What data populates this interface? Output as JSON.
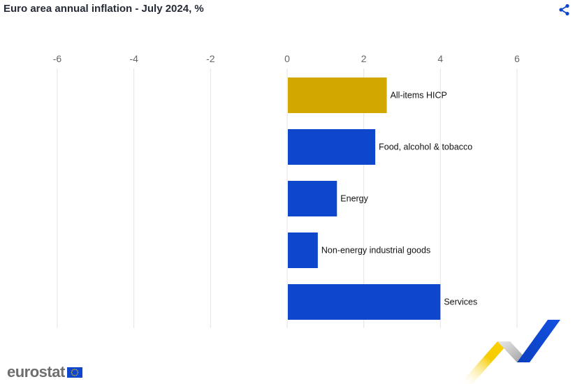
{
  "title": "Euro area annual inflation - July 2024, %",
  "icons": {
    "share": "share-icon",
    "flag": "eu-flag-icon"
  },
  "logo": {
    "text": "eurostat"
  },
  "colors": {
    "highlight": "#d2a800",
    "bar": "#0e47cb",
    "grid": "#e3e3e3"
  },
  "chart_data": {
    "type": "bar",
    "orientation": "horizontal",
    "title": "Euro area annual inflation - July 2024, %",
    "categories": [
      "All-items HICP",
      "Food, alcohol & tobacco",
      "Energy",
      "Non-energy industrial goods",
      "Services"
    ],
    "values": [
      2.6,
      2.3,
      1.3,
      0.8,
      4.0
    ],
    "highlight_index": 0,
    "xlim": [
      -6,
      7
    ],
    "xticks": [
      -6,
      -4,
      -2,
      0,
      2,
      4,
      6
    ],
    "grid": true,
    "axis_position": "top",
    "legend": "none"
  }
}
